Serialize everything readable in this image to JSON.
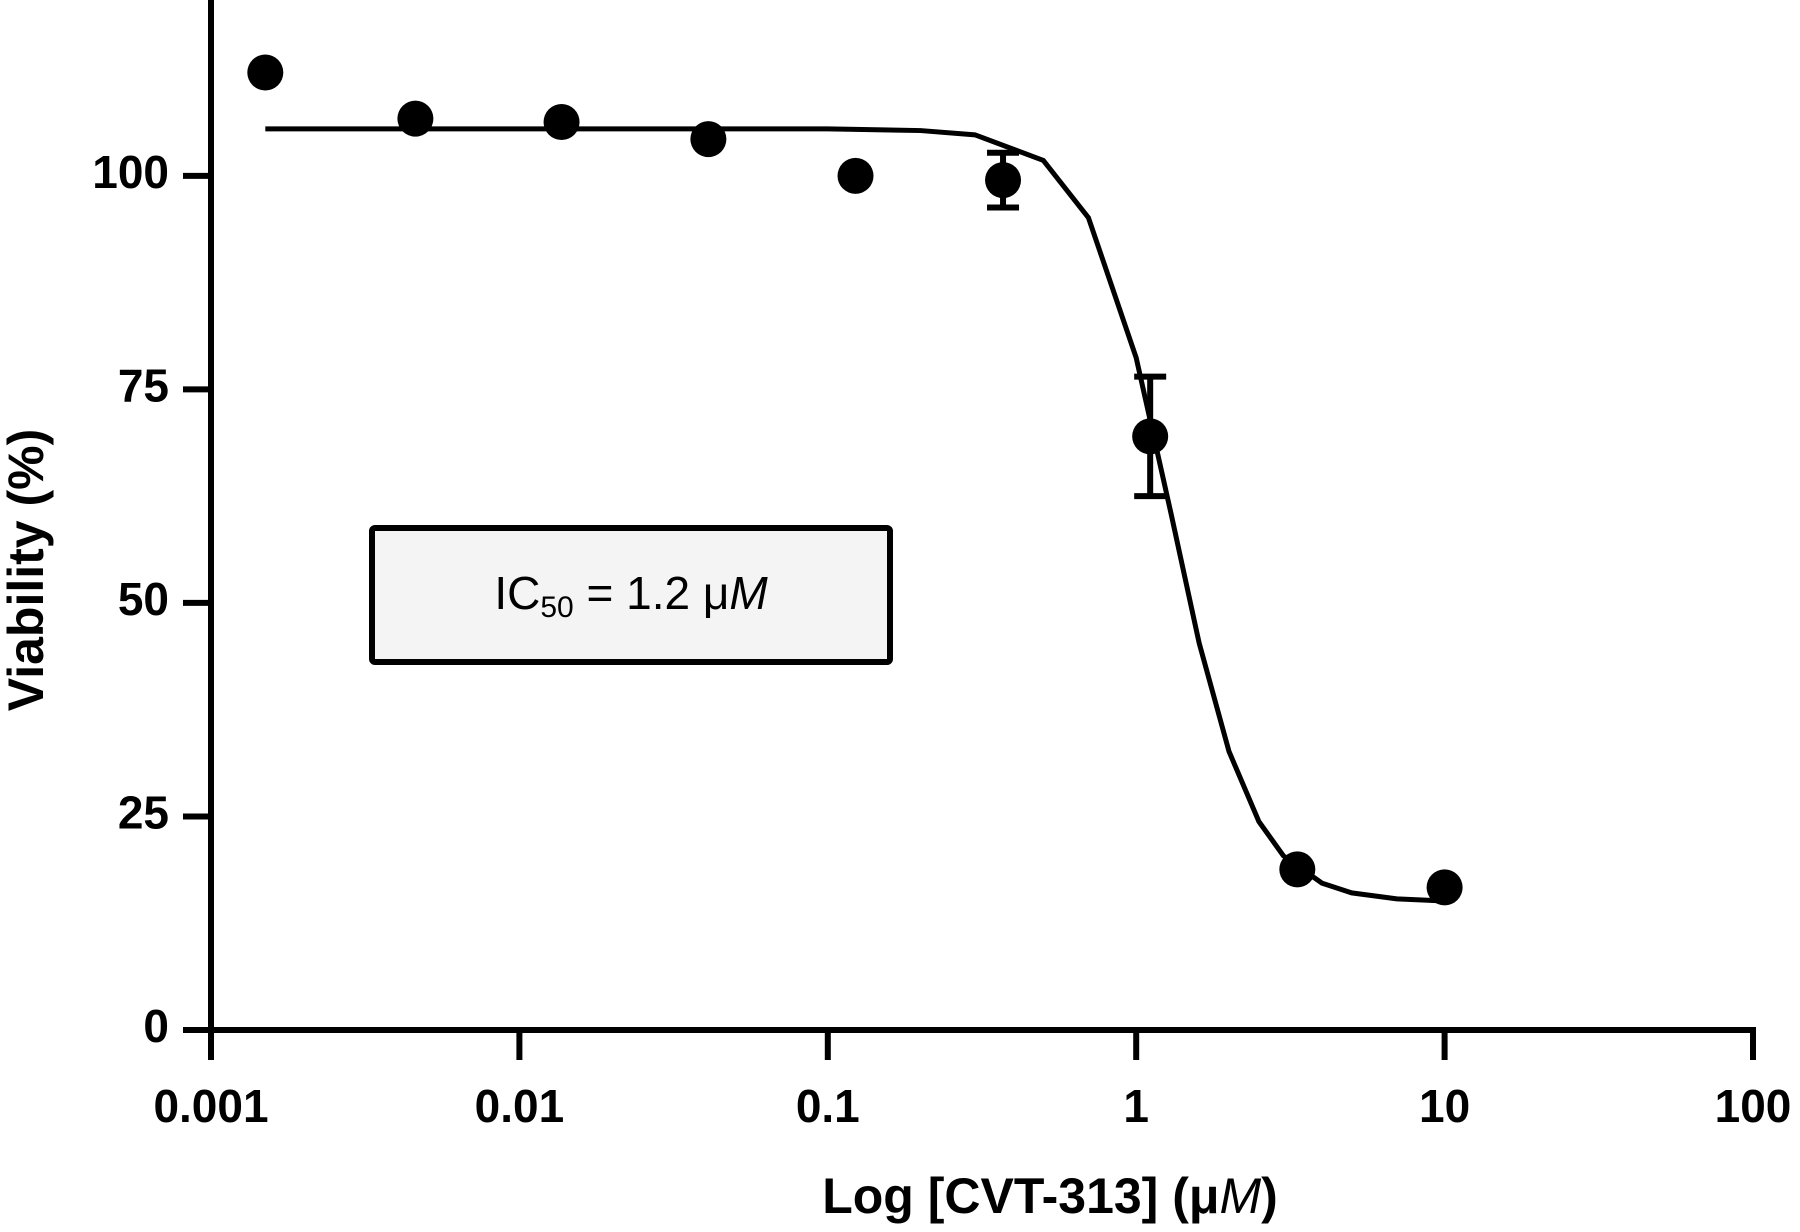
{
  "chart_data": {
    "type": "scatter",
    "xlabel": [
      "Log [CVT-313]  (μ",
      "M",
      ")"
    ],
    "ylabel": "Viability (%)",
    "annotation": {
      "text": "IC",
      "subscript": "50",
      "rest": " = 1.2 μ",
      "unit": "M"
    },
    "xscale": "log",
    "xlim": [
      0.001,
      100
    ],
    "xticks": [
      0.001,
      0.01,
      0.1,
      1,
      10,
      100
    ],
    "ylim": [
      0,
      120
    ],
    "yticks": [
      0,
      25,
      50,
      75,
      100
    ],
    "series": [
      {
        "type": "scatter",
        "color": "#000000",
        "x": [
          0.0015,
          0.0046,
          0.0137,
          0.041,
          0.123,
          0.37,
          1.11,
          3.33,
          10
        ],
        "values": [
          112.1,
          106.7,
          106.3,
          104.3,
          100,
          99.5,
          69.5,
          18.8,
          16.7
        ],
        "errors": [
          null,
          null,
          null,
          null,
          null,
          3.2,
          7,
          null,
          null
        ]
      },
      {
        "type": "line",
        "color": "#000000",
        "x": [
          0.0015,
          0.01,
          0.1,
          0.2,
          0.3,
          0.5,
          0.7,
          1,
          1.3,
          1.6,
          2,
          2.5,
          3,
          4,
          5,
          7,
          10
        ],
        "values": [
          105.5,
          105.5,
          105.5,
          105.3,
          104.8,
          101.8,
          95.1,
          78.7,
          60.3,
          45.3,
          32.6,
          24.4,
          20.4,
          17.2,
          16.05,
          15.35,
          15.1
        ]
      }
    ]
  }
}
